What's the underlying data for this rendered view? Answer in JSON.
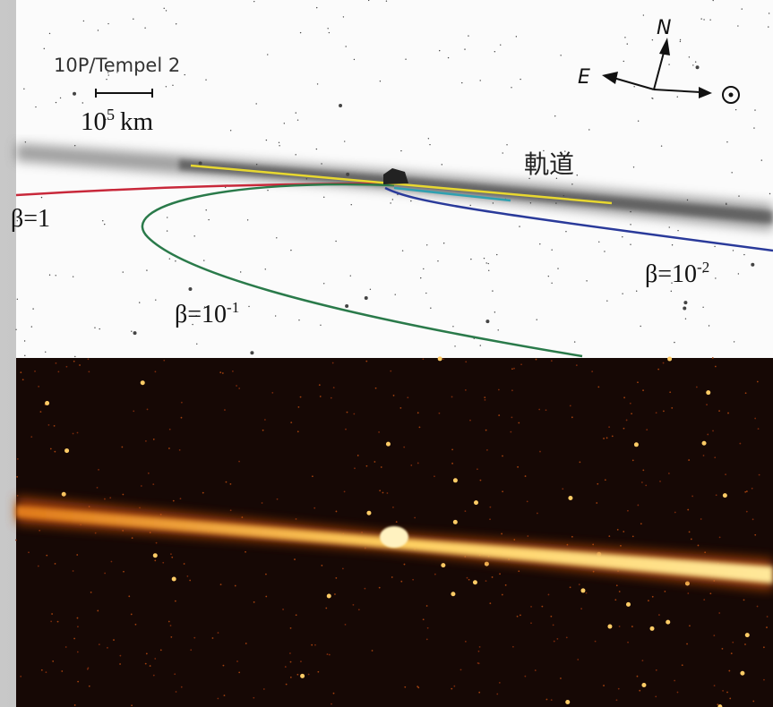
{
  "title": "10P/Tempel 2",
  "scale": {
    "base": "10",
    "exponent": "5",
    "unit": "km"
  },
  "compass": {
    "north": "N",
    "east": "E"
  },
  "orbit_label": "軌道",
  "beta_labels": [
    {
      "base": "β=1"
    },
    {
      "base": "β=10",
      "exponent": "-1"
    },
    {
      "base": "β=10",
      "exponent": "-2"
    }
  ]
}
